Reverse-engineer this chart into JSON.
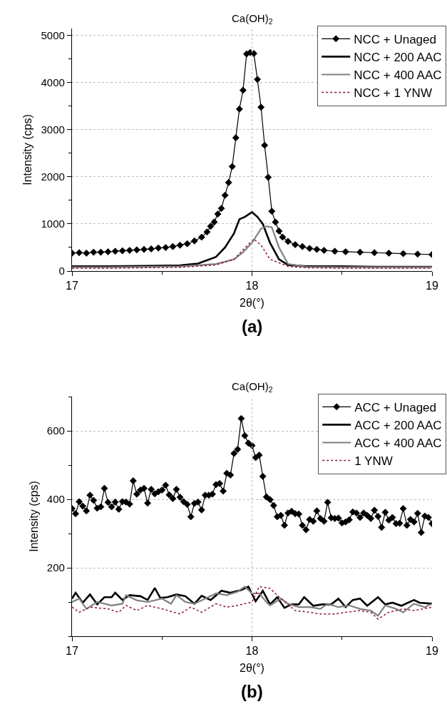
{
  "chart_data": [
    {
      "type": "line",
      "xlabel": "2θ(°)",
      "ylabel": "Intensity (cps)",
      "xlim": [
        17,
        19
      ],
      "xticks": [
        17,
        18,
        19
      ],
      "ylim": [
        0,
        5150
      ],
      "yticks": [
        0,
        1000,
        2000,
        3000,
        4000,
        5000
      ],
      "grid": "y",
      "legend": "top right",
      "ref_lines": [
        {
          "axis": "x",
          "value": 18,
          "label": "Ca(OH)$_{2}$",
          "color": "#c0c0c0",
          "line_style": "dotted"
        }
      ],
      "annotations": [
        "(a)"
      ],
      "series": [
        {
          "name": "NCC + Unaged",
          "color": "#000000",
          "marker": "diamond",
          "line_style": "solid",
          "x": [
            17.0,
            17.04,
            17.08,
            17.12,
            17.16,
            17.2,
            17.24,
            17.28,
            17.32,
            17.36,
            17.4,
            17.44,
            17.48,
            17.52,
            17.56,
            17.6,
            17.64,
            17.68,
            17.72,
            17.75,
            17.77,
            17.79,
            17.81,
            17.83,
            17.85,
            17.87,
            17.89,
            17.91,
            17.93,
            17.95,
            17.97,
            17.99,
            18.01,
            18.03,
            18.05,
            18.07,
            18.09,
            18.11,
            18.13,
            18.15,
            18.17,
            18.2,
            18.24,
            18.28,
            18.32,
            18.36,
            18.4,
            18.46,
            18.52,
            18.6,
            18.68,
            18.76,
            18.84,
            18.92,
            19.0
          ],
          "values": [
            380,
            390,
            380,
            400,
            400,
            410,
            420,
            430,
            440,
            450,
            460,
            470,
            490,
            500,
            520,
            550,
            580,
            640,
            720,
            830,
            950,
            1040,
            1210,
            1330,
            1610,
            1880,
            2220,
            2830,
            3440,
            3840,
            4610,
            4640,
            4620,
            4070,
            3480,
            2670,
            1990,
            1270,
            1040,
            850,
            720,
            630,
            560,
            520,
            480,
            460,
            440,
            420,
            410,
            400,
            390,
            380,
            370,
            360,
            350
          ]
        },
        {
          "name": "NCC + 200 AAC",
          "color": "#000000",
          "marker": "none",
          "line_style": "solid",
          "x": [
            17.0,
            17.2,
            17.4,
            17.6,
            17.7,
            17.8,
            17.85,
            17.9,
            17.93,
            17.96,
            18.0,
            18.03,
            18.06,
            18.1,
            18.15,
            18.2,
            18.3,
            18.5,
            18.7,
            19.0
          ],
          "values": [
            100,
            100,
            110,
            120,
            160,
            300,
            500,
            800,
            1100,
            1150,
            1250,
            1150,
            1000,
            600,
            250,
            130,
            100,
            100,
            90,
            90
          ]
        },
        {
          "name": "NCC + 400 AAC",
          "color": "#808080",
          "marker": "none",
          "line_style": "solid",
          "x": [
            17.0,
            17.2,
            17.4,
            17.6,
            17.8,
            17.9,
            17.95,
            18.0,
            18.05,
            18.08,
            18.11,
            18.15,
            18.2,
            18.3,
            18.5,
            18.7,
            19.0
          ],
          "values": [
            80,
            80,
            90,
            100,
            150,
            250,
            400,
            600,
            900,
            950,
            930,
            500,
            150,
            90,
            80,
            80,
            80
          ]
        },
        {
          "name": "NCC + 1 YNW",
          "color": "#8b1a2b",
          "marker": "none",
          "line_style": "dotted",
          "x": [
            17.0,
            17.2,
            17.4,
            17.6,
            17.8,
            17.9,
            17.95,
            18.01,
            18.05,
            18.1,
            18.2,
            18.3,
            18.5,
            18.7,
            19.0
          ],
          "values": [
            60,
            60,
            70,
            80,
            130,
            250,
            450,
            680,
            550,
            250,
            100,
            70,
            60,
            60,
            60
          ]
        }
      ]
    },
    {
      "type": "line",
      "xlabel": "2θ(°)",
      "ylabel": "Intensity (cps)",
      "xlim": [
        17,
        19
      ],
      "xticks": [
        17,
        18,
        19
      ],
      "ylim": [
        0,
        700
      ],
      "yticks": [
        200,
        400,
        600
      ],
      "grid": "y",
      "legend": "top right",
      "ref_lines": [
        {
          "axis": "x",
          "value": 18,
          "label": "Ca(OH)$_{2}$",
          "color": "#c0c0c0",
          "line_style": "dotted"
        }
      ],
      "annotations": [
        "(b)"
      ],
      "series": [
        {
          "name": "ACC + Unaged",
          "color": "#000000",
          "marker": "diamond",
          "line_style": "solid",
          "x": [
            17.0,
            17.02,
            17.04,
            17.06,
            17.08,
            17.1,
            17.12,
            17.14,
            17.16,
            17.18,
            17.2,
            17.22,
            17.24,
            17.26,
            17.28,
            17.3,
            17.32,
            17.34,
            17.36,
            17.38,
            17.4,
            17.42,
            17.44,
            17.46,
            17.48,
            17.5,
            17.52,
            17.54,
            17.56,
            17.58,
            17.6,
            17.62,
            17.64,
            17.66,
            17.68,
            17.7,
            17.72,
            17.74,
            17.76,
            17.78,
            17.8,
            17.82,
            17.84,
            17.86,
            17.88,
            17.9,
            17.92,
            17.94,
            17.96,
            17.98,
            18.0,
            18.02,
            18.04,
            18.06,
            18.08,
            18.1,
            18.12,
            18.14,
            18.16,
            18.18,
            18.2,
            18.22,
            18.24,
            18.26,
            18.28,
            18.3,
            18.32,
            18.34,
            18.36,
            18.38,
            18.4,
            18.42,
            18.44,
            18.46,
            18.48,
            18.5,
            18.52,
            18.54,
            18.56,
            18.58,
            18.6,
            18.62,
            18.64,
            18.66,
            18.68,
            18.7,
            18.72,
            18.74,
            18.76,
            18.78,
            18.8,
            18.82,
            18.84,
            18.86,
            18.88,
            18.9,
            18.92,
            18.94,
            18.96,
            18.98,
            19.0
          ],
          "values": [
            373,
            358,
            393,
            380,
            366,
            412,
            397,
            374,
            378,
            432,
            391,
            378,
            392,
            371,
            393,
            392,
            386,
            454,
            415,
            427,
            432,
            389,
            429,
            416,
            422,
            427,
            441,
            413,
            402,
            429,
            406,
            393,
            385,
            349,
            388,
            392,
            369,
            412,
            412,
            415,
            443,
            446,
            424,
            476,
            471,
            534,
            546,
            636,
            586,
            564,
            557,
            522,
            529,
            467,
            407,
            399,
            382,
            349,
            353,
            324,
            360,
            365,
            358,
            357,
            324,
            311,
            341,
            336,
            366,
            344,
            336,
            391,
            346,
            344,
            345,
            331,
            334,
            340,
            363,
            360,
            347,
            360,
            353,
            344,
            368,
            350,
            318,
            362,
            339,
            347,
            329,
            330,
            373,
            324,
            341,
            334,
            359,
            303,
            351,
            347,
            329
          ]
        },
        {
          "name": "ACC + 200 AAC",
          "color": "#000000",
          "marker": "none",
          "line_style": "solid",
          "x": [
            17.0,
            17.02,
            17.06,
            17.1,
            17.14,
            17.18,
            17.22,
            17.24,
            17.28,
            17.32,
            17.38,
            17.42,
            17.46,
            17.49,
            17.53,
            17.58,
            17.63,
            17.68,
            17.72,
            17.77,
            17.83,
            17.88,
            17.94,
            17.98,
            18.02,
            18.06,
            18.1,
            18.14,
            18.18,
            18.22,
            18.26,
            18.29,
            18.34,
            18.39,
            18.44,
            18.48,
            18.52,
            18.56,
            18.6,
            18.64,
            18.7,
            18.74,
            18.78,
            18.83,
            18.9,
            18.93,
            19.0
          ],
          "values": [
            110,
            127,
            98,
            122,
            93,
            114,
            114,
            127,
            106,
            120,
            117,
            106,
            141,
            112,
            114,
            122,
            117,
            95,
            118,
            106,
            133,
            127,
            135,
            145,
            102,
            133,
            93,
            114,
            83,
            93,
            93,
            114,
            89,
            93,
            93,
            110,
            85,
            106,
            110,
            89,
            114,
            93,
            98,
            89,
            106,
            98,
            95
          ]
        },
        {
          "name": "ACC + 400 AAC",
          "color": "#808080",
          "marker": "none",
          "line_style": "solid",
          "x": [
            17.0,
            17.04,
            17.08,
            17.14,
            17.22,
            17.28,
            17.3,
            17.36,
            17.42,
            17.5,
            17.55,
            17.58,
            17.63,
            17.68,
            17.74,
            17.8,
            17.86,
            17.92,
            17.96,
            18.0,
            18.04,
            18.08,
            18.1,
            18.16,
            18.2,
            18.26,
            18.32,
            18.38,
            18.42,
            18.48,
            18.54,
            18.6,
            18.66,
            18.7,
            18.74,
            18.8,
            18.84,
            18.9,
            18.96,
            19.0
          ],
          "values": [
            100,
            110,
            80,
            100,
            90,
            95,
            120,
            105,
            100,
            110,
            95,
            120,
            100,
            95,
            110,
            125,
            120,
            130,
            145,
            125,
            125,
            100,
            90,
            110,
            95,
            85,
            85,
            80,
            95,
            85,
            90,
            80,
            75,
            60,
            90,
            80,
            70,
            95,
            85,
            95
          ]
        },
        {
          "name": "1 YNW",
          "color": "#8b1a2b",
          "marker": "none",
          "line_style": "dotted",
          "x": [
            17.0,
            17.04,
            17.1,
            17.2,
            17.26,
            17.3,
            17.36,
            17.42,
            17.5,
            17.6,
            17.66,
            17.72,
            17.8,
            17.86,
            17.92,
            18.0,
            18.04,
            18.1,
            18.16,
            18.24,
            18.32,
            18.38,
            18.46,
            18.52,
            18.6,
            18.66,
            18.7,
            18.76,
            18.84,
            18.9,
            19.0
          ],
          "values": [
            85,
            70,
            85,
            80,
            70,
            90,
            75,
            90,
            80,
            65,
            85,
            70,
            95,
            85,
            90,
            100,
            145,
            140,
            110,
            75,
            70,
            65,
            65,
            70,
            75,
            70,
            50,
            70,
            80,
            75,
            85
          ]
        }
      ]
    }
  ]
}
